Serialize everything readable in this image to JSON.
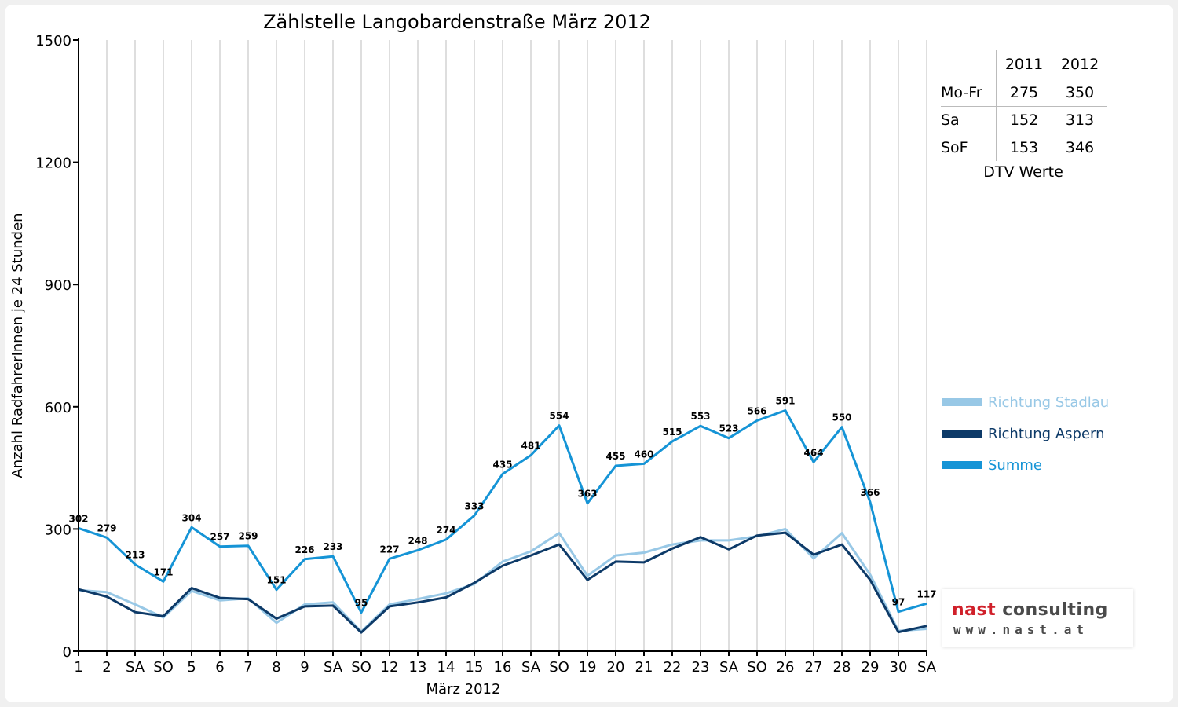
{
  "chart_data": {
    "type": "line",
    "title": "Zählstelle Langobardenstraße März 2012",
    "xlabel": "März 2012",
    "ylabel": "Anzahl RadfahrerInnen je 24 Stunden",
    "ylim": [
      0,
      1500
    ],
    "yticks": [
      0,
      300,
      600,
      900,
      1200,
      1500
    ],
    "grid": "vertical",
    "legend_position": "right",
    "categories": [
      "1",
      "2",
      "SA",
      "SO",
      "5",
      "6",
      "7",
      "8",
      "9",
      "SA",
      "SO",
      "12",
      "13",
      "14",
      "15",
      "16",
      "SA",
      "SO",
      "19",
      "20",
      "21",
      "22",
      "23",
      "SA",
      "SO",
      "26",
      "27",
      "28",
      "29",
      "30",
      "SA"
    ],
    "highlight_categories": {
      "SO": "#e00000"
    },
    "series": [
      {
        "name": "Richtung Stadlau",
        "color": "#98c8e6",
        "values": [
          150,
          145,
          115,
          83,
          148,
          125,
          130,
          70,
          115,
          120,
          48,
          115,
          128,
          142,
          165,
          220,
          245,
          290,
          185,
          235,
          242,
          262,
          272,
          272,
          282,
          300,
          228,
          290,
          188,
          50,
          55
        ],
        "labels": false
      },
      {
        "name": "Richtung Aspern",
        "color": "#0d3a68",
        "values": [
          152,
          134,
          96,
          86,
          155,
          131,
          128,
          80,
          110,
          112,
          46,
          110,
          120,
          132,
          168,
          210,
          235,
          262,
          175,
          220,
          218,
          252,
          280,
          250,
          284,
          291,
          237,
          262,
          175,
          47,
          62
        ],
        "labels": false
      },
      {
        "name": "Summe",
        "color": "#1594d6",
        "values": [
          302,
          279,
          213,
          171,
          304,
          257,
          259,
          151,
          226,
          233,
          95,
          227,
          248,
          274,
          333,
          435,
          481,
          554,
          363,
          455,
          460,
          515,
          553,
          523,
          566,
          591,
          464,
          550,
          366,
          97,
          117
        ],
        "labels": true
      }
    ]
  },
  "dtv_table": {
    "columns": [
      "2011",
      "2012"
    ],
    "rows": [
      {
        "label": "Mo-Fr",
        "values": [
          "275",
          "350"
        ]
      },
      {
        "label": "Sa",
        "values": [
          "152",
          "313"
        ]
      },
      {
        "label": "SoF",
        "values": [
          "153",
          "346"
        ]
      }
    ],
    "caption": "DTV Werte"
  },
  "logo": {
    "name_part1": "nast",
    "name_part2": "consulting",
    "url": "www.nast.at"
  }
}
